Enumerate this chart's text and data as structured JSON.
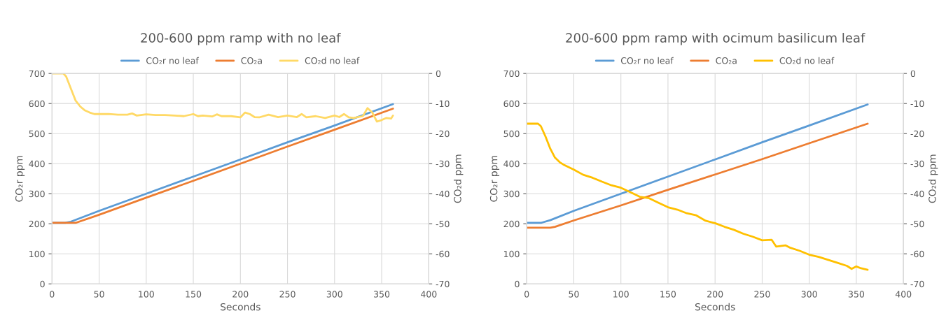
{
  "chart_data": [
    {
      "type": "line",
      "title": "200-600 ppm ramp with no leaf",
      "xlabel": "Seconds",
      "ylabel": "CO₂r ppm",
      "y2label": "CO₂d ppm",
      "xlim": [
        0,
        400
      ],
      "xticks": [
        0,
        50,
        100,
        150,
        200,
        250,
        300,
        350,
        400
      ],
      "ylim": [
        0,
        700
      ],
      "yticks": [
        0,
        100,
        200,
        300,
        400,
        500,
        600,
        700
      ],
      "y2lim": [
        -70,
        0
      ],
      "y2ticks": [
        -70,
        -60,
        -50,
        -40,
        -30,
        -20,
        -10,
        0
      ],
      "grid": true,
      "legend": "top",
      "marker": "none",
      "line_style": "solid",
      "series": [
        {
          "name": "CO₂r no leaf",
          "color": "#5b9bd5",
          "x": [
            0,
            14,
            20,
            50,
            100,
            150,
            200,
            250,
            300,
            362
          ],
          "values": [
            203,
            203,
            207,
            243,
            300,
            357,
            414,
            471,
            527,
            598
          ]
        },
        {
          "name": "CO₂a",
          "color": "#ed7d31",
          "x": [
            0,
            25,
            50,
            100,
            150,
            200,
            250,
            300,
            362
          ],
          "values": [
            203,
            203,
            230,
            287,
            343,
            400,
            457,
            513,
            583
          ]
        },
        {
          "name": "CO₂d no leaf",
          "color": "#ffd966",
          "axis": "y2",
          "x": [
            0,
            12,
            15,
            20,
            25,
            30,
            35,
            40,
            45,
            50,
            60,
            70,
            80,
            85,
            90,
            100,
            110,
            120,
            130,
            140,
            150,
            155,
            160,
            170,
            175,
            180,
            190,
            200,
            205,
            210,
            215,
            220,
            230,
            240,
            250,
            260,
            265,
            270,
            280,
            290,
            300,
            305,
            310,
            315,
            320,
            330,
            335,
            340,
            345,
            350,
            355,
            360,
            362
          ],
          "values": [
            0,
            0,
            -1,
            -5,
            -9,
            -11,
            -12.3,
            -13,
            -13.5,
            -13.5,
            -13.5,
            -13.7,
            -13.7,
            -13.3,
            -14,
            -13.6,
            -13.8,
            -13.8,
            -14,
            -14.2,
            -13.5,
            -14.2,
            -14,
            -14.3,
            -13.6,
            -14.2,
            -14.2,
            -14.6,
            -13,
            -13.5,
            -14.5,
            -14.6,
            -13.7,
            -14.5,
            -14,
            -14.5,
            -13.5,
            -14.6,
            -14.2,
            -14.8,
            -14,
            -14.5,
            -13.5,
            -14.6,
            -14.8,
            -14.2,
            -11.5,
            -13,
            -16,
            -15.5,
            -14.8,
            -15,
            -14
          ]
        }
      ]
    },
    {
      "type": "line",
      "title": "200-600 ppm ramp with ocimum basilicum leaf",
      "xlabel": "Seconds",
      "ylabel": "CO₂r ppm",
      "y2label": "CO₂d ppm",
      "xlim": [
        0,
        400
      ],
      "xticks": [
        0,
        50,
        100,
        150,
        200,
        250,
        300,
        350,
        400
      ],
      "ylim": [
        0,
        700
      ],
      "yticks": [
        0,
        100,
        200,
        300,
        400,
        500,
        600,
        700
      ],
      "y2lim": [
        -70,
        0
      ],
      "y2ticks": [
        -70,
        -60,
        -50,
        -40,
        -30,
        -20,
        -10,
        0
      ],
      "grid": true,
      "legend": "top",
      "marker": "none",
      "line_style": "solid",
      "series": [
        {
          "name": "CO₂r no leaf",
          "color": "#5b9bd5",
          "x": [
            0,
            15,
            25,
            50,
            100,
            150,
            200,
            250,
            300,
            362
          ],
          "values": [
            203,
            203,
            212,
            243,
            300,
            357,
            414,
            471,
            527,
            597
          ]
        },
        {
          "name": "CO₂a",
          "color": "#ed7d31",
          "x": [
            0,
            25,
            30,
            50,
            100,
            150,
            200,
            250,
            300,
            362
          ],
          "values": [
            187,
            187,
            190,
            211,
            261,
            313,
            364,
            415,
            468,
            533
          ]
        },
        {
          "name": "CO₂d no leaf",
          "color": "#ffc000",
          "axis": "y2",
          "x": [
            0,
            12,
            15,
            20,
            25,
            30,
            35,
            40,
            50,
            60,
            70,
            80,
            90,
            100,
            110,
            120,
            130,
            140,
            150,
            160,
            170,
            180,
            190,
            200,
            210,
            220,
            230,
            240,
            250,
            260,
            265,
            275,
            280,
            290,
            300,
            310,
            320,
            330,
            340,
            345,
            350,
            355,
            362
          ],
          "values": [
            -16.7,
            -16.7,
            -17.5,
            -21,
            -25,
            -28,
            -29.5,
            -30.5,
            -32,
            -33.7,
            -34.7,
            -36,
            -37.2,
            -38,
            -39.5,
            -41,
            -41.5,
            -43,
            -44.5,
            -45.3,
            -46.5,
            -47.2,
            -49,
            -49.8,
            -51,
            -52,
            -53.3,
            -54.3,
            -55.5,
            -55.3,
            -57.6,
            -57.2,
            -58,
            -59,
            -60.3,
            -61,
            -62,
            -63,
            -64,
            -65,
            -64.2,
            -64.8,
            -65.3
          ]
        }
      ]
    }
  ]
}
